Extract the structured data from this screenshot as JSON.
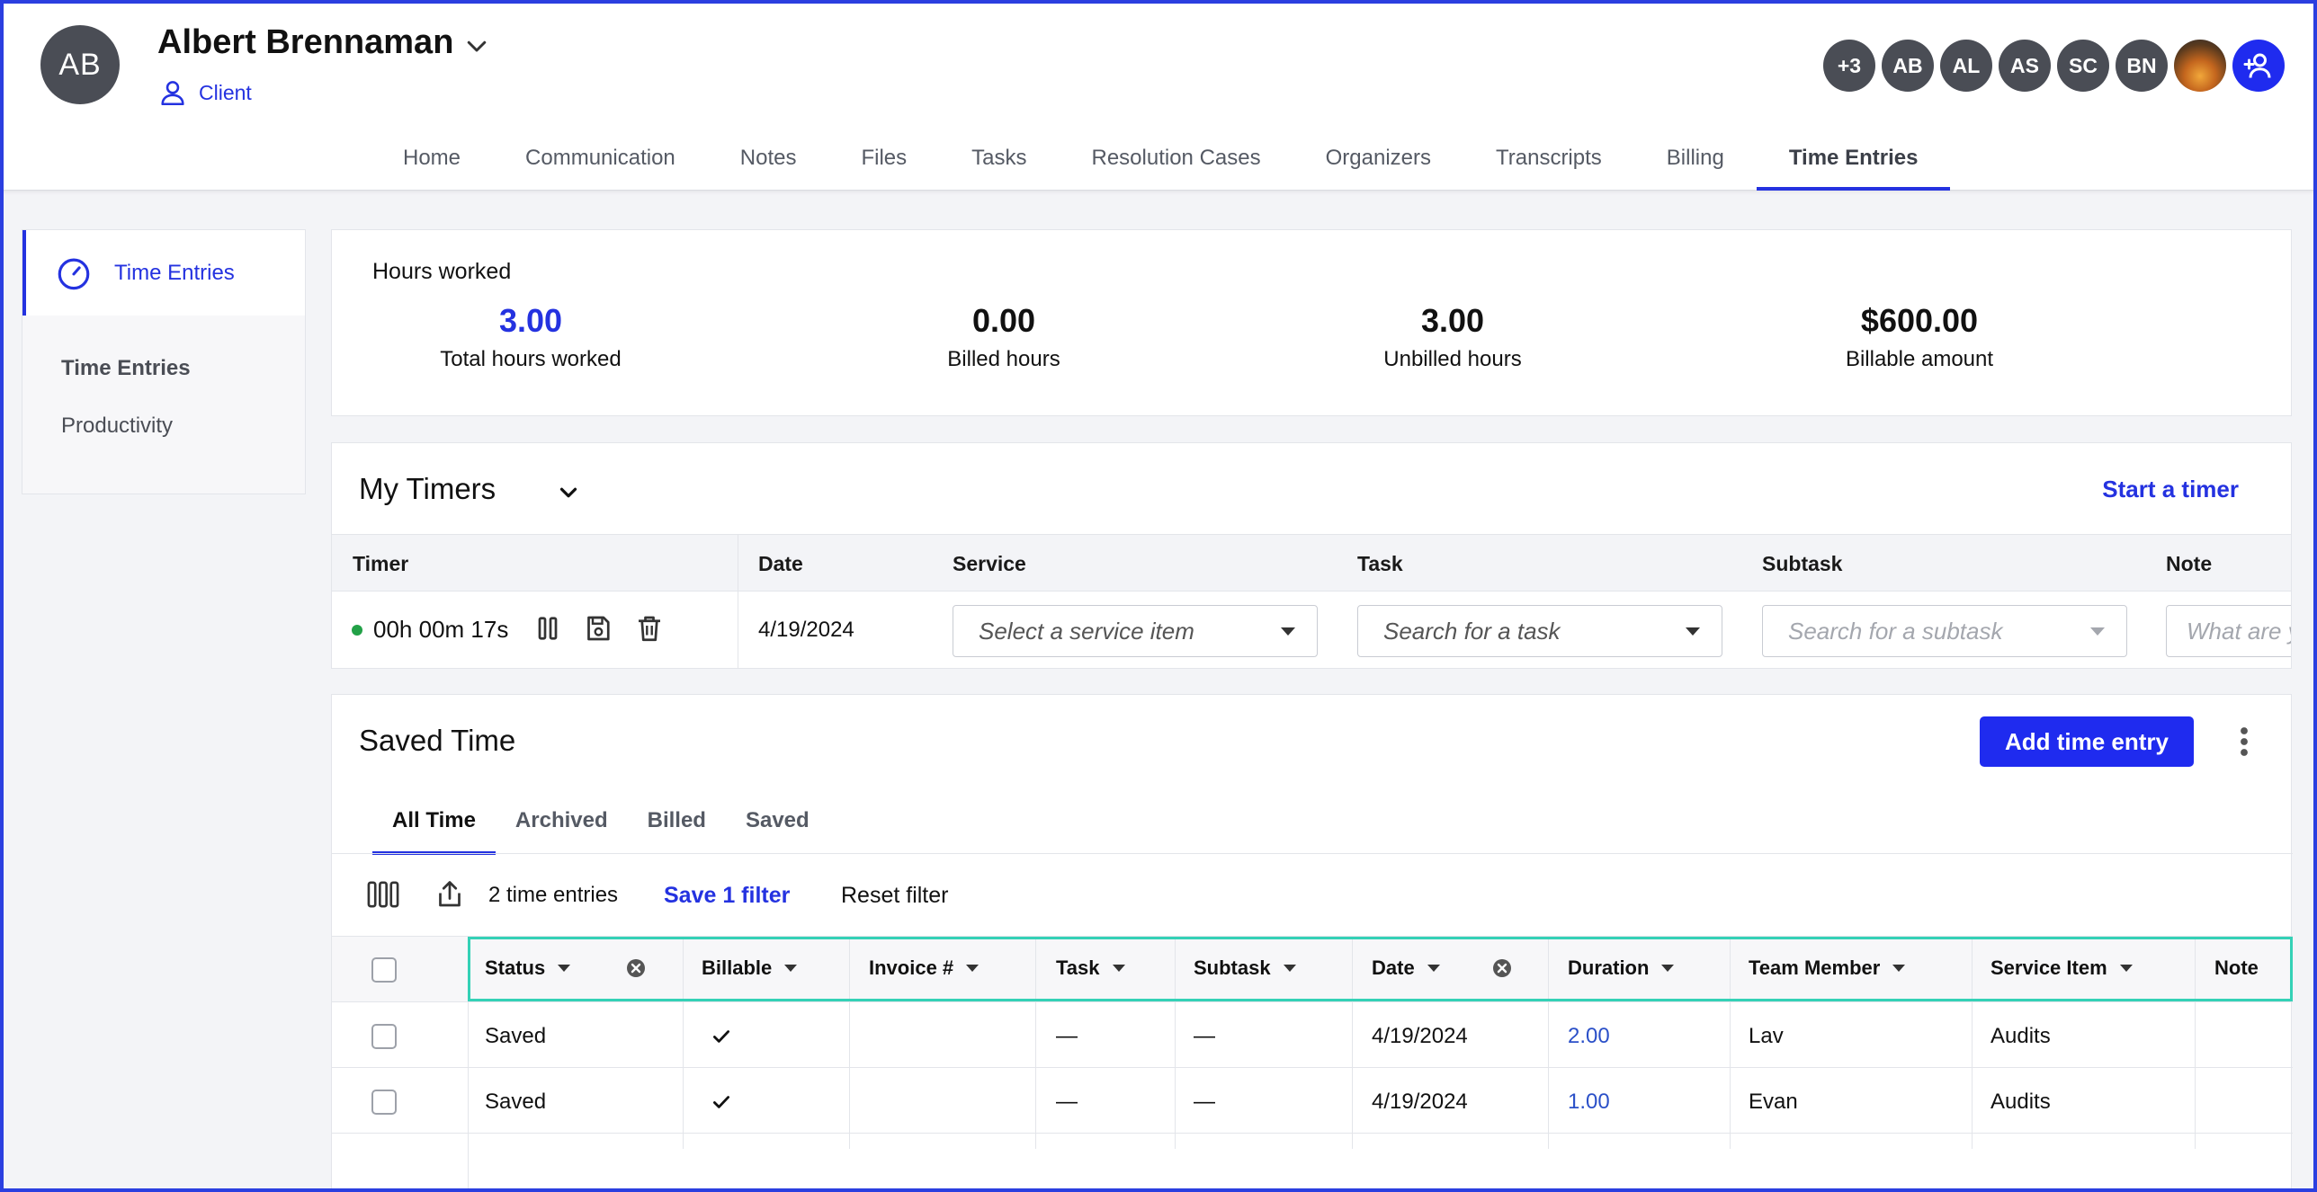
{
  "client": {
    "initials": "AB",
    "name": "Albert Brennaman",
    "role": "Client"
  },
  "team_avatars": [
    "+3",
    "AB",
    "AL",
    "AS",
    "SC",
    "BN"
  ],
  "nav_tabs": [
    "Home",
    "Communication",
    "Notes",
    "Files",
    "Tasks",
    "Resolution Cases",
    "Organizers",
    "Transcripts",
    "Billing",
    "Time Entries"
  ],
  "sidebar": {
    "header": "Time Entries",
    "items": [
      "Time Entries",
      "Productivity"
    ]
  },
  "hours": {
    "title": "Hours worked",
    "stats": [
      {
        "value": "3.00",
        "label": "Total hours worked"
      },
      {
        "value": "0.00",
        "label": "Billed hours"
      },
      {
        "value": "3.00",
        "label": "Unbilled hours"
      },
      {
        "value": "$600.00",
        "label": "Billable amount"
      }
    ]
  },
  "timers": {
    "title": "My Timers",
    "start_label": "Start a timer",
    "columns": [
      "Timer",
      "Date",
      "Service",
      "Task",
      "Subtask",
      "Note"
    ],
    "row": {
      "elapsed": "00h 00m 17s",
      "date": "4/19/2024",
      "service_placeholder": "Select a service item",
      "task_placeholder": "Search for a task",
      "subtask_placeholder": "Search for a subtask",
      "note_placeholder": "What are y"
    }
  },
  "saved_time": {
    "title": "Saved Time",
    "add_label": "Add time entry",
    "tabs": [
      "All Time",
      "Archived",
      "Billed",
      "Saved"
    ],
    "entries_count": "2 time entries",
    "save_filter": "Save 1 filter",
    "reset_filter": "Reset filter",
    "columns": [
      "Status",
      "Billable",
      "Invoice #",
      "Task",
      "Subtask",
      "Date",
      "Duration",
      "Team Member",
      "Service Item",
      "Note"
    ],
    "rows": [
      {
        "status": "Saved",
        "billable": true,
        "invoice": "",
        "task": "—",
        "subtask": "—",
        "date": "4/19/2024",
        "duration": "2.00",
        "member": "Lav",
        "service": "Audits",
        "note": ""
      },
      {
        "status": "Saved",
        "billable": true,
        "invoice": "",
        "task": "—",
        "subtask": "—",
        "date": "4/19/2024",
        "duration": "1.00",
        "member": "Evan",
        "service": "Audits",
        "note": ""
      }
    ]
  },
  "colors": {
    "accent": "#2432e0",
    "header_outline": "#34d1b6",
    "timer_running": "#22a147"
  }
}
